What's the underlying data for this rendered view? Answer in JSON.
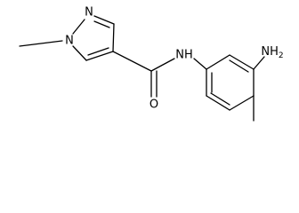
{
  "atoms": [
    {
      "label": "N"
    },
    {
      "label": "N"
    },
    {
      "label": "NH"
    },
    {
      "label": "O"
    },
    {
      "label": "NH",
      "subscript": "2"
    }
  ]
}
